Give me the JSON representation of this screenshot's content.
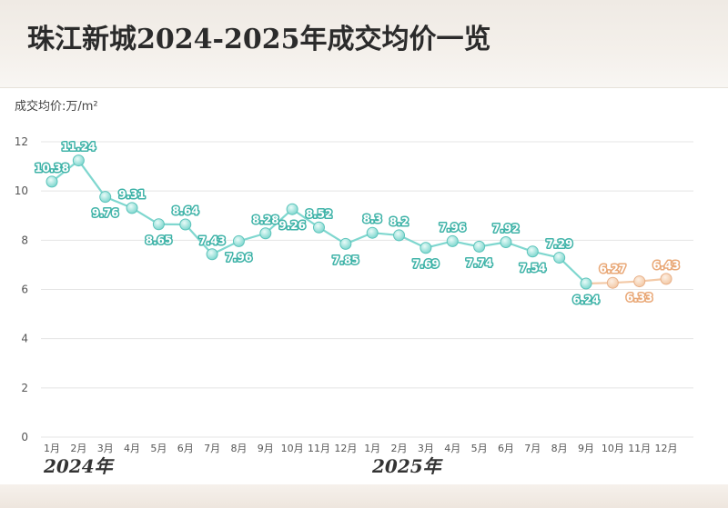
{
  "header": {
    "title": "珠江新城2024-2025年成交均价一览"
  },
  "chart_data": {
    "type": "line",
    "title": "珠江新城2024-2025年成交均价一览",
    "ylabel": "成交均价:万/m²",
    "xlabel": "",
    "ylim": [
      0,
      12
    ],
    "yticks": [
      "0",
      "2",
      "4",
      "6",
      "8",
      "10",
      "12"
    ],
    "categories": [
      "1月",
      "2月",
      "3月",
      "4月",
      "5月",
      "6月",
      "7月",
      "8月",
      "9月",
      "10月",
      "11月",
      "12月",
      "1月",
      "2月",
      "3月",
      "4月",
      "5月",
      "6月",
      "7月",
      "8月",
      "9月",
      "10月",
      "11月",
      "12月"
    ],
    "year_labels": [
      "2024年",
      "2025年"
    ],
    "grid": true,
    "series": [
      {
        "values": [
          10.38,
          11.24,
          9.76,
          9.31,
          8.65,
          8.64,
          7.43,
          7.96,
          8.28,
          9.26,
          8.52,
          7.85,
          8.3,
          8.2,
          7.69,
          7.96,
          7.74,
          7.92,
          7.54,
          7.29,
          6.24,
          6.27,
          6.33,
          6.43
        ],
        "value_labels": [
          "10.38",
          "11.24",
          "9.76",
          "9.31",
          "8.65",
          "8.64",
          "7.43",
          "7.96",
          "8.28",
          "9.26",
          "8.52",
          "7.85",
          "8.3",
          "8.2",
          "7.69",
          "7.96",
          "7.74",
          "7.92",
          "7.54",
          "7.29",
          "6.24",
          "6.27",
          "6.33",
          "6.43"
        ],
        "color": "#7fd7cf",
        "highlight_color": "#f3c9a6",
        "highlight_from_index": 20
      }
    ]
  }
}
